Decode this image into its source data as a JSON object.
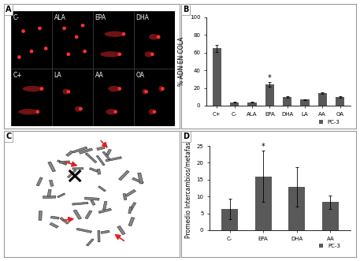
{
  "chart_data": [
    {
      "type": "bar",
      "title": "B",
      "categories": [
        "C+",
        "C-",
        "ALA",
        "EPA",
        "DHA",
        "LA",
        "AA",
        "OA"
      ],
      "y_label": "% ADN EN COLA",
      "series": [
        {
          "name": "PC-3",
          "color": "#595959",
          "values": [
            65,
            4,
            4,
            24,
            10,
            7,
            14,
            10
          ],
          "errors": [
            4,
            0.5,
            0.5,
            3,
            1,
            0.5,
            1,
            1
          ]
        }
      ],
      "ylim": [
        0,
        100
      ],
      "yticks": [
        0,
        20,
        40,
        60,
        80,
        100
      ],
      "annotations": [
        {
          "text": "*",
          "category": "EPA"
        }
      ],
      "legend": "lower right"
    },
    {
      "type": "bar",
      "title": "D",
      "categories": [
        "C-",
        "EPA",
        "DHA",
        "AA"
      ],
      "y_label": "Promedio Intercambios/metafase",
      "series": [
        {
          "name": "PC-3",
          "color": "#595959",
          "values": [
            6.3,
            16,
            12.8,
            8.3
          ],
          "errors": [
            3,
            7.5,
            5.8,
            2
          ]
        }
      ],
      "ylim": [
        0,
        25
      ],
      "yticks": [
        0,
        5,
        10,
        15,
        20,
        25
      ],
      "annotations": [
        {
          "text": "*",
          "category": "EPA"
        }
      ],
      "legend": "lower right"
    }
  ],
  "figure_panels": {
    "A": {
      "label": "A",
      "captions": [
        [
          "C-",
          "ALA",
          "EPA",
          "DHA"
        ],
        [
          "C+",
          "LA",
          "AA",
          "OA"
        ]
      ]
    },
    "C": {
      "label": "C"
    }
  }
}
